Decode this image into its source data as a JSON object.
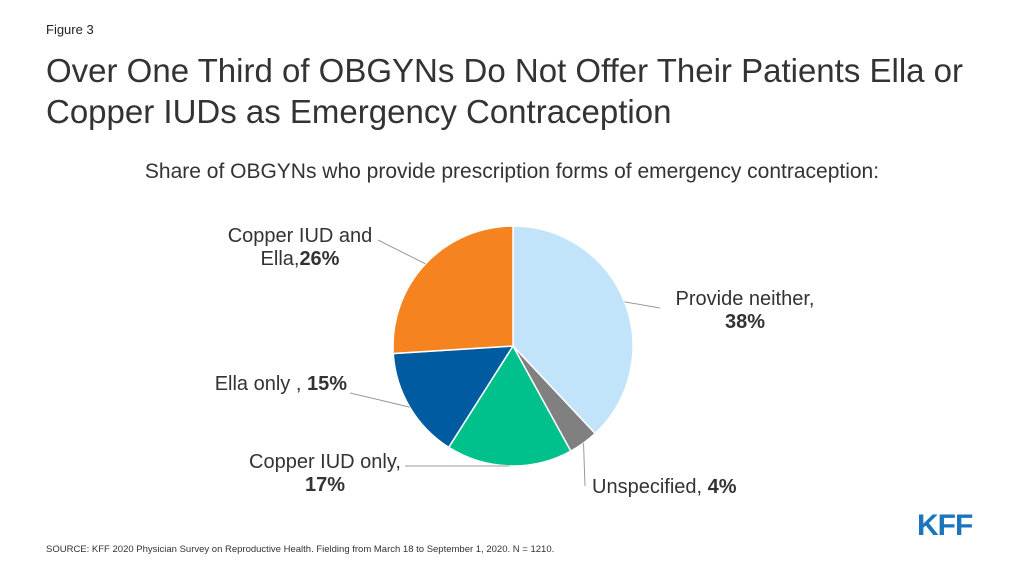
{
  "figure_label": "Figure 3",
  "title": "Over One Third of OBGYNs Do Not Offer Their Patients Ella or Copper IUDs as Emergency Contraception",
  "subtitle": "Share of OBGYNs who provide prescription forms of emergency contraception:",
  "source": "SOURCE: KFF 2020 Physician Survey on Reproductive Health. Fielding from March 18 to September 1, 2020. N = 1210.",
  "logo": "KFF",
  "chart_data": {
    "type": "pie",
    "start": "12 o'clock",
    "direction": "clockwise",
    "slices": [
      {
        "label_lines": [
          "Provide neither,"
        ],
        "pct_text": "38%",
        "value": 38,
        "color": "#c2e4fb"
      },
      {
        "label_lines": [
          "Unspecified,"
        ],
        "pct_text": "4%",
        "value": 4,
        "color": "#808080"
      },
      {
        "label_lines": [
          "Copper IUD only,"
        ],
        "pct_text": "17%",
        "value": 17,
        "color": "#00c08b"
      },
      {
        "label_lines": [
          "Ella only ,"
        ],
        "pct_text": "15%",
        "value": 15,
        "color": "#005ba1"
      },
      {
        "label_lines": [
          "Copper IUD and",
          "Ella,"
        ],
        "pct_text": "26%",
        "value": 26,
        "color": "#f58320"
      }
    ]
  }
}
